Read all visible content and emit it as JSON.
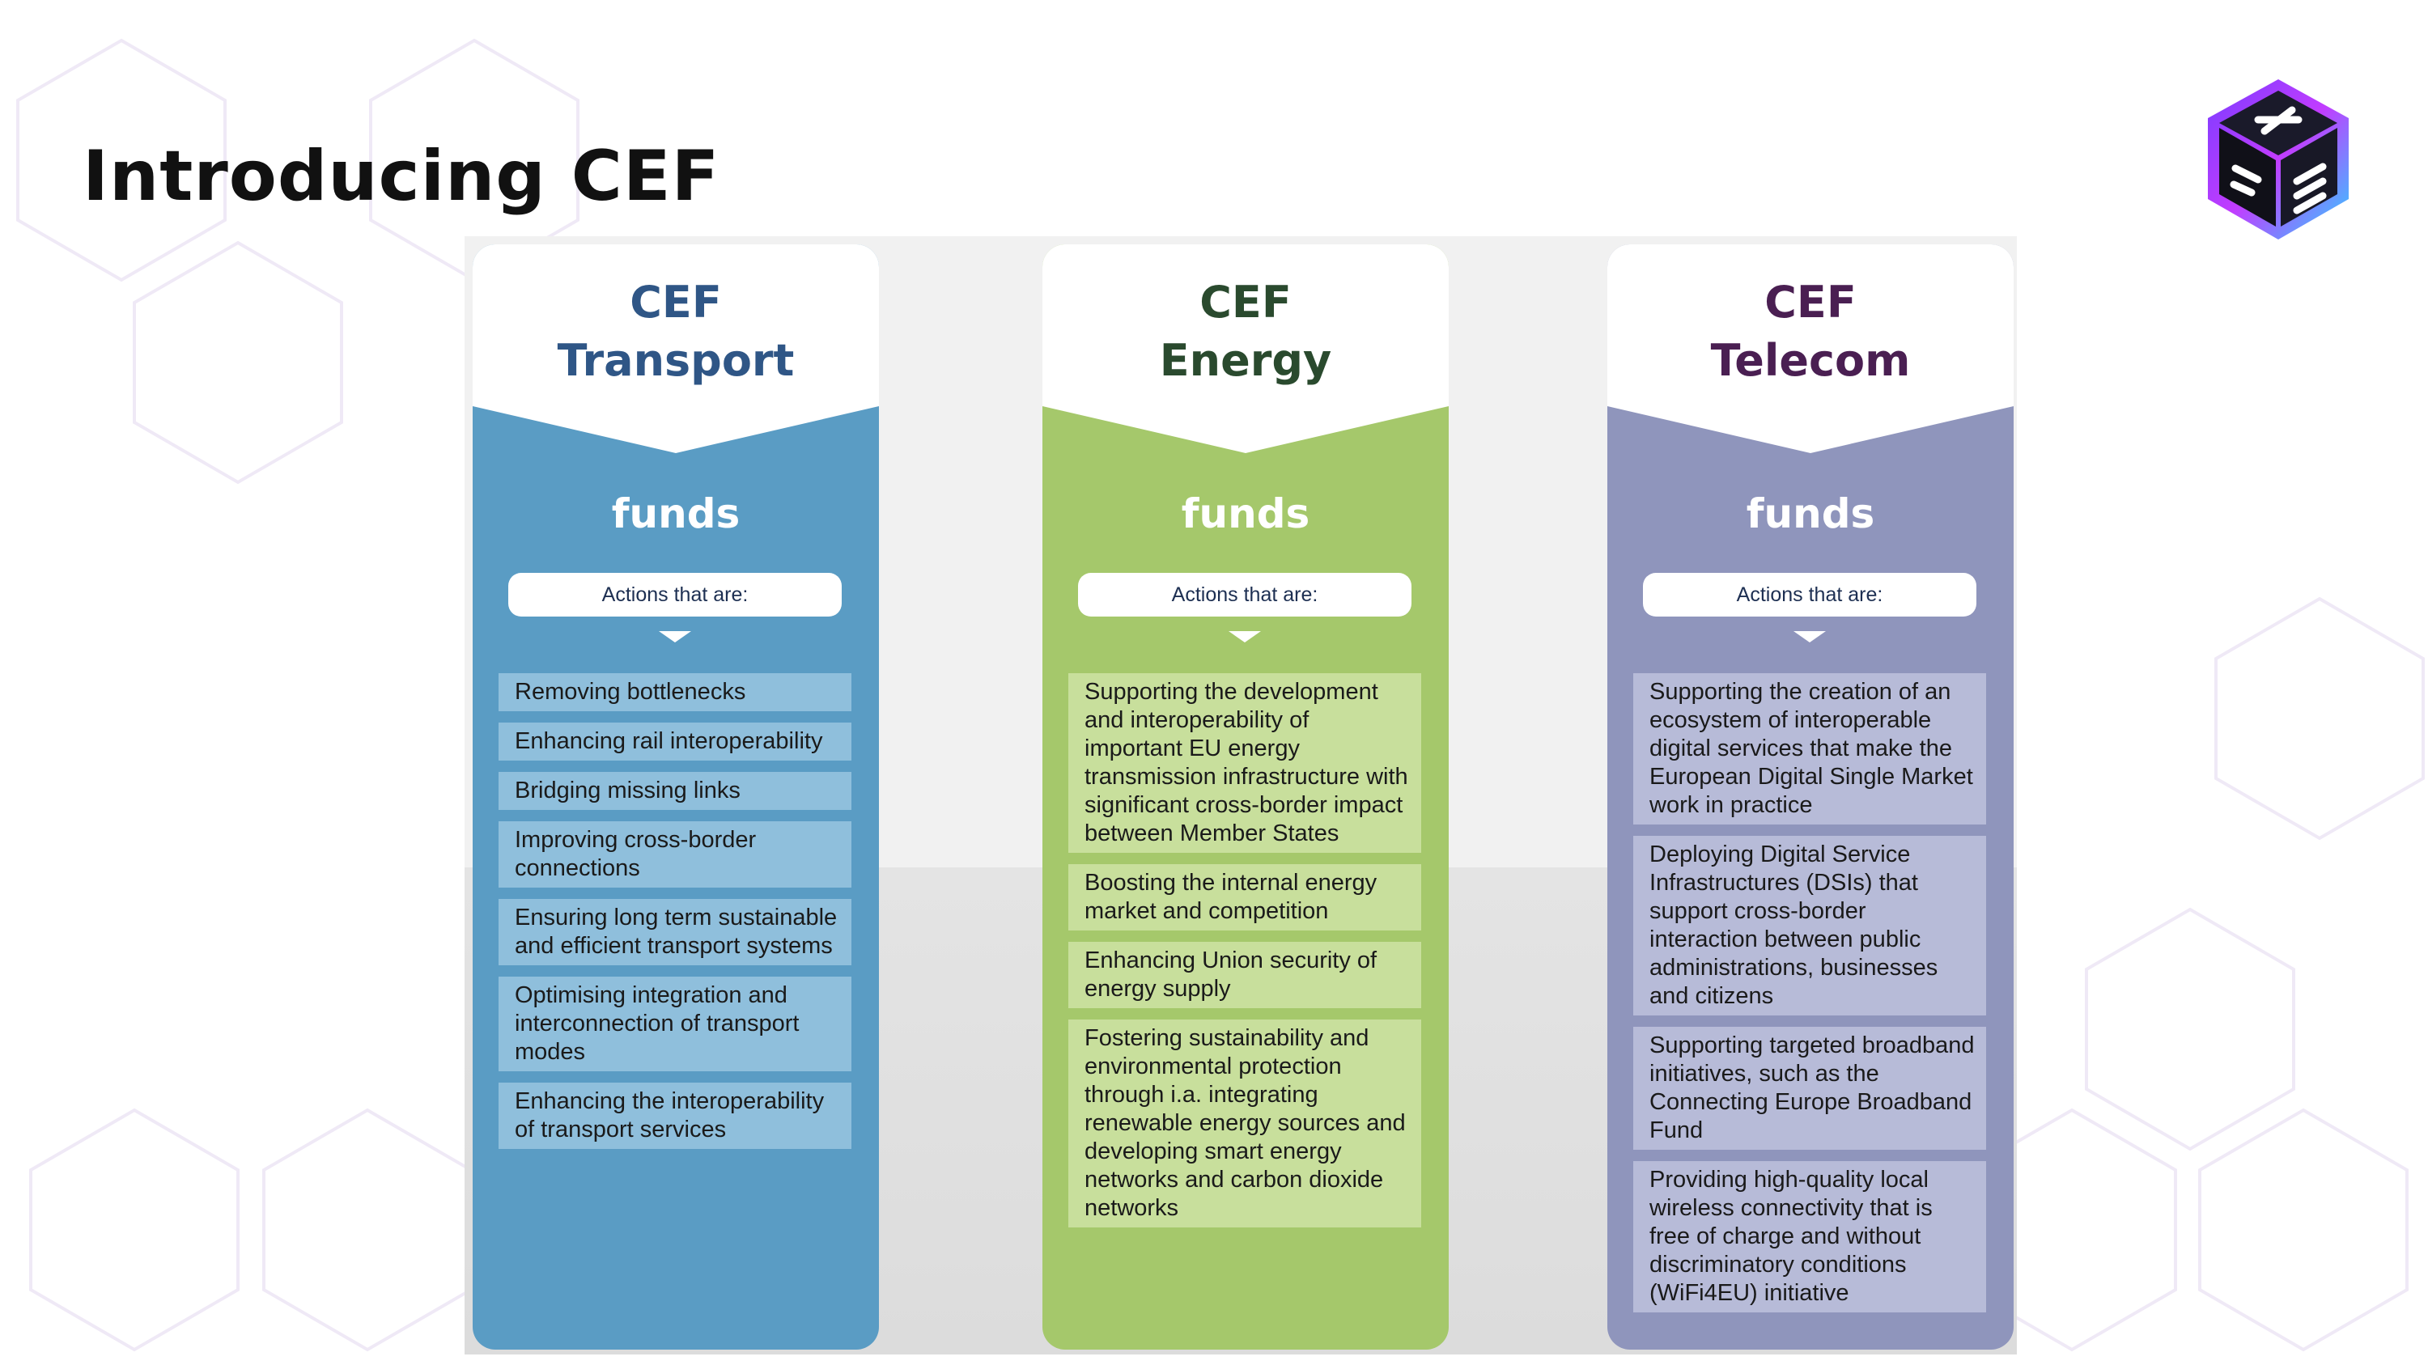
{
  "page_title": "Introducing CEF",
  "columns": [
    {
      "head1": "CEF",
      "head2": "Transport",
      "funds": "funds",
      "actions_label": "Actions that are:",
      "items": [
        "Removing bottlenecks",
        "Enhancing rail interoperability",
        "Bridging missing links",
        "Improving cross-border connections",
        "Ensuring long term sustainable and efficient transport systems",
        "Optimising integration and interconnection of transport modes",
        "Enhancing the interoperability of transport services"
      ]
    },
    {
      "head1": "CEF",
      "head2": "Energy",
      "funds": "funds",
      "actions_label": "Actions that are:",
      "items": [
        "Supporting the development and interoperability of important EU energy transmission infrastructure with significant cross-border impact between Member States",
        "Boosting the internal energy market and competition",
        "Enhancing Union security of energy supply",
        "Fostering sustainability and environmental protection through i.a. integrating renewable energy sources and developing smart energy networks and carbon dioxide networks"
      ]
    },
    {
      "head1": "CEF",
      "head2": "Telecom",
      "funds": "funds",
      "actions_label": "Actions that are:",
      "items": [
        "Supporting the creation of an ecosystem of interoperable digital services that make the European Digital Single Market work in practice",
        "Deploying Digital Service Infrastructures (DSIs) that support cross-border interaction between public administrations, businesses and citizens",
        "Supporting targeted broadband initiatives, such as the Connecting Europe Broadband Fund",
        "Providing high-quality local wireless connectivity that is free of charge and without discriminatory conditions (WiFi4EU) initiative"
      ]
    }
  ],
  "colors": {
    "transport": "#5a9cc4",
    "energy": "#a5c86b",
    "telecom": "#8f95bc",
    "transport_heading": "#2f5686",
    "energy_heading": "#2a4a2e",
    "telecom_heading": "#4a1f52"
  },
  "icons": [
    "logo-cube-icon"
  ]
}
